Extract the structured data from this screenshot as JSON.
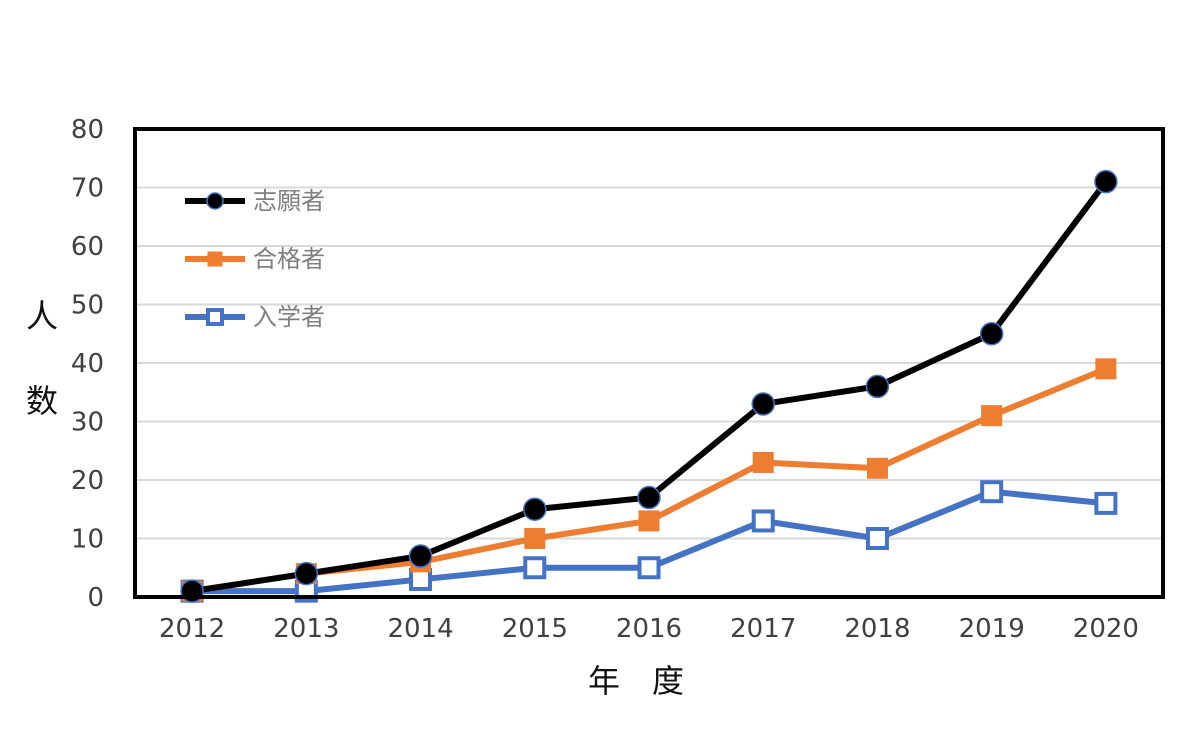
{
  "chart_data": {
    "type": "line",
    "title": "",
    "xlabel": "年　度",
    "ylabel_chars": [
      "人",
      "数"
    ],
    "categories": [
      "2012",
      "2013",
      "2014",
      "2015",
      "2016",
      "2017",
      "2018",
      "2019",
      "2020"
    ],
    "ylim": [
      0,
      80
    ],
    "yticks": [
      "0",
      "10",
      "20",
      "30",
      "40",
      "50",
      "60",
      "70",
      "80"
    ],
    "grid": true,
    "legend_position": "top-left",
    "series": [
      {
        "name": "志願者",
        "color": "#000000",
        "marker": "circle",
        "values": [
          1,
          4,
          7,
          15,
          17,
          33,
          36,
          45,
          71
        ]
      },
      {
        "name": "合格者",
        "color": "#ED7D31",
        "marker": "square",
        "values": [
          1,
          4,
          6,
          10,
          13,
          23,
          22,
          31,
          39
        ]
      },
      {
        "name": "入学者",
        "color": "#4472C4",
        "marker": "open-square",
        "values": [
          1,
          1,
          3,
          5,
          5,
          13,
          10,
          18,
          16
        ]
      }
    ]
  }
}
